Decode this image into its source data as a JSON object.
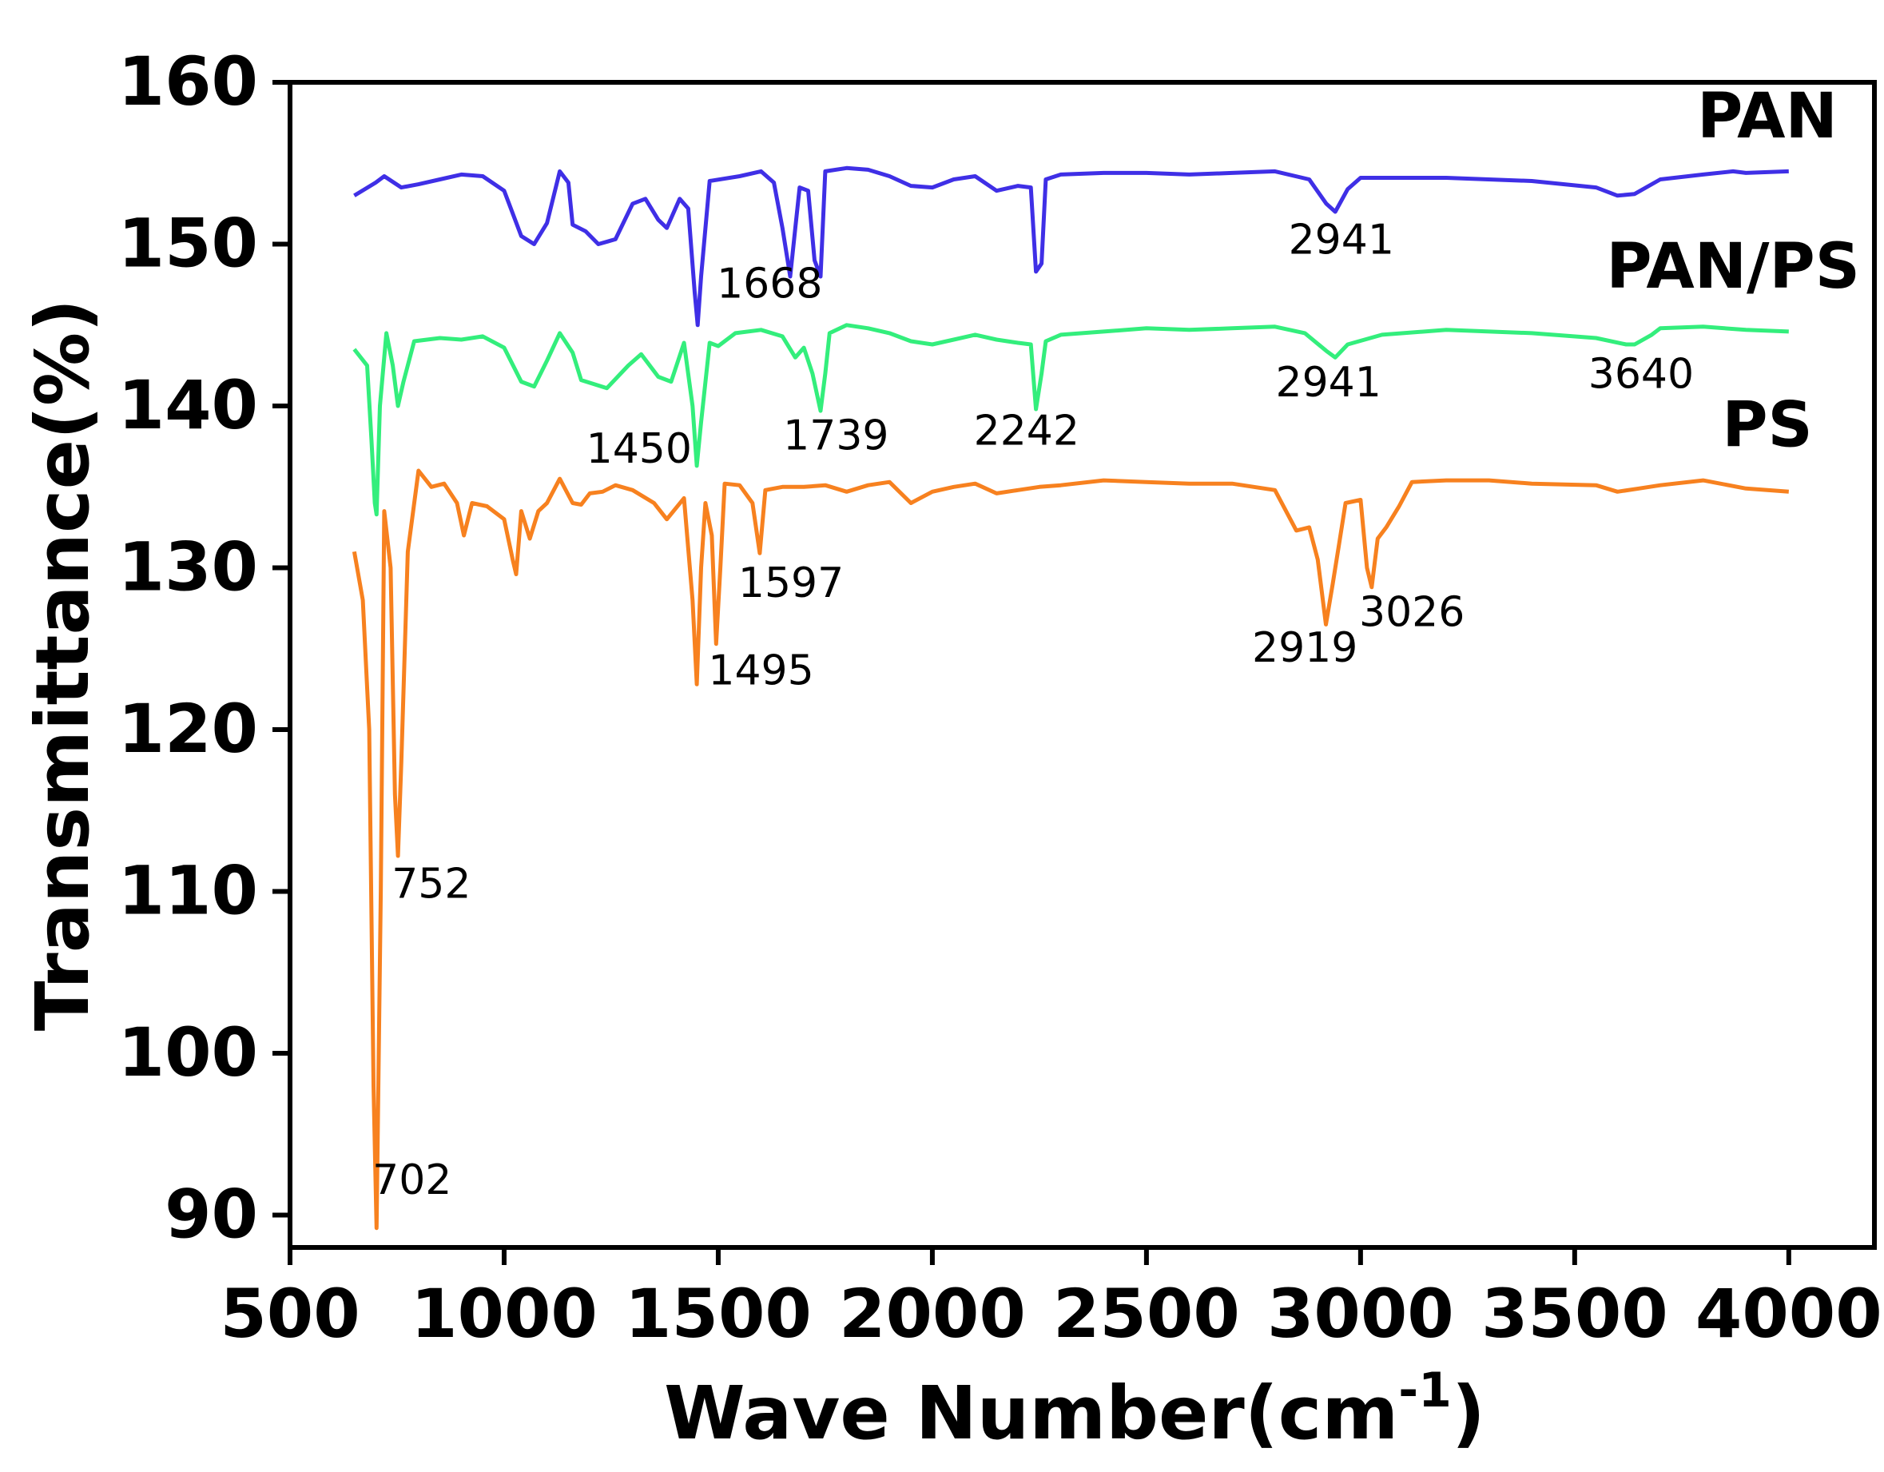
{
  "chart_data": {
    "type": "line",
    "title": "",
    "xlabel": "Wave Number(cm",
    "xlabel_superscript": "-1",
    "xlabel_close": ")",
    "ylabel": "Transmittance(%)",
    "xlim": [
      500,
      4200
    ],
    "ylim": [
      88,
      160
    ],
    "x_ticks": [
      500,
      1000,
      1500,
      2000,
      2500,
      3000,
      3500,
      4000
    ],
    "y_ticks": [
      90,
      100,
      110,
      120,
      130,
      140,
      150,
      160
    ],
    "x_tick_labels": [
      "500",
      "1000",
      "1500",
      "2000",
      "2500",
      "3000",
      "3500",
      "4000"
    ],
    "y_tick_labels": [
      "90",
      "100",
      "110",
      "120",
      "130",
      "140",
      "150",
      "160"
    ],
    "series": [
      {
        "name": "PAN",
        "color": "#3f2fe6",
        "points": [
          [
            650,
            153
          ],
          [
            700,
            153.8
          ],
          [
            720,
            154.2
          ],
          [
            760,
            153.5
          ],
          [
            800,
            153.7
          ],
          [
            850,
            154
          ],
          [
            900,
            154.3
          ],
          [
            950,
            154.2
          ],
          [
            1000,
            153.3
          ],
          [
            1040,
            150.5
          ],
          [
            1070,
            150
          ],
          [
            1100,
            151.3
          ],
          [
            1130,
            154.5
          ],
          [
            1150,
            153.8
          ],
          [
            1160,
            151.2
          ],
          [
            1190,
            150.8
          ],
          [
            1220,
            150
          ],
          [
            1260,
            150.3
          ],
          [
            1300,
            152.5
          ],
          [
            1330,
            152.8
          ],
          [
            1360,
            151.5
          ],
          [
            1380,
            151
          ],
          [
            1410,
            152.8
          ],
          [
            1430,
            152.2
          ],
          [
            1445,
            147
          ],
          [
            1452,
            145
          ],
          [
            1460,
            148
          ],
          [
            1480,
            153.9
          ],
          [
            1550,
            154.2
          ],
          [
            1600,
            154.5
          ],
          [
            1630,
            153.8
          ],
          [
            1650,
            151
          ],
          [
            1668,
            148
          ],
          [
            1680,
            151
          ],
          [
            1690,
            153.5
          ],
          [
            1710,
            153.3
          ],
          [
            1725,
            149
          ],
          [
            1739,
            148
          ],
          [
            1750,
            154.5
          ],
          [
            1800,
            154.7
          ],
          [
            1850,
            154.6
          ],
          [
            1900,
            154.2
          ],
          [
            1950,
            153.6
          ],
          [
            2000,
            153.5
          ],
          [
            2050,
            154
          ],
          [
            2100,
            154.2
          ],
          [
            2150,
            153.3
          ],
          [
            2200,
            153.6
          ],
          [
            2230,
            153.5
          ],
          [
            2242,
            148.3
          ],
          [
            2255,
            148.8
          ],
          [
            2265,
            154
          ],
          [
            2300,
            154.3
          ],
          [
            2400,
            154.4
          ],
          [
            2500,
            154.4
          ],
          [
            2600,
            154.3
          ],
          [
            2700,
            154.4
          ],
          [
            2800,
            154.5
          ],
          [
            2880,
            154
          ],
          [
            2920,
            152.5
          ],
          [
            2941,
            152
          ],
          [
            2970,
            153.4
          ],
          [
            3000,
            154.1
          ],
          [
            3200,
            154.1
          ],
          [
            3400,
            153.9
          ],
          [
            3550,
            153.5
          ],
          [
            3600,
            153
          ],
          [
            3640,
            153.1
          ],
          [
            3700,
            154
          ],
          [
            3800,
            154.3
          ],
          [
            3870,
            154.5
          ],
          [
            3900,
            154.4
          ],
          [
            4000,
            154.5
          ]
        ]
      },
      {
        "name": "PAN/PS",
        "color": "#33ee7c",
        "points": [
          [
            650,
            143.5
          ],
          [
            680,
            142.5
          ],
          [
            690,
            138
          ],
          [
            698,
            134
          ],
          [
            702,
            133.3
          ],
          [
            710,
            140
          ],
          [
            725,
            144.5
          ],
          [
            740,
            142.5
          ],
          [
            752,
            140
          ],
          [
            765,
            141.5
          ],
          [
            790,
            144
          ],
          [
            850,
            144.2
          ],
          [
            900,
            144.1
          ],
          [
            950,
            144.3
          ],
          [
            1000,
            143.6
          ],
          [
            1040,
            141.5
          ],
          [
            1070,
            141.2
          ],
          [
            1100,
            142.8
          ],
          [
            1130,
            144.5
          ],
          [
            1160,
            143.3
          ],
          [
            1180,
            141.6
          ],
          [
            1240,
            141.1
          ],
          [
            1290,
            142.5
          ],
          [
            1320,
            143.2
          ],
          [
            1360,
            141.8
          ],
          [
            1390,
            141.5
          ],
          [
            1420,
            143.9
          ],
          [
            1440,
            140
          ],
          [
            1450,
            136.3
          ],
          [
            1460,
            139
          ],
          [
            1480,
            143.9
          ],
          [
            1500,
            143.7
          ],
          [
            1540,
            144.5
          ],
          [
            1600,
            144.7
          ],
          [
            1650,
            144.3
          ],
          [
            1680,
            143
          ],
          [
            1700,
            143.6
          ],
          [
            1720,
            142
          ],
          [
            1739,
            139.7
          ],
          [
            1750,
            142
          ],
          [
            1760,
            144.5
          ],
          [
            1800,
            145
          ],
          [
            1850,
            144.8
          ],
          [
            1900,
            144.5
          ],
          [
            1950,
            144
          ],
          [
            2000,
            143.8
          ],
          [
            2050,
            144.1
          ],
          [
            2100,
            144.4
          ],
          [
            2150,
            144.1
          ],
          [
            2200,
            143.9
          ],
          [
            2230,
            143.8
          ],
          [
            2242,
            139.8
          ],
          [
            2255,
            142
          ],
          [
            2265,
            144
          ],
          [
            2300,
            144.4
          ],
          [
            2400,
            144.6
          ],
          [
            2500,
            144.8
          ],
          [
            2600,
            144.7
          ],
          [
            2700,
            144.8
          ],
          [
            2800,
            144.9
          ],
          [
            2870,
            144.5
          ],
          [
            2920,
            143.4
          ],
          [
            2941,
            143
          ],
          [
            2970,
            143.8
          ],
          [
            3050,
            144.4
          ],
          [
            3200,
            144.7
          ],
          [
            3400,
            144.5
          ],
          [
            3550,
            144.2
          ],
          [
            3620,
            143.8
          ],
          [
            3640,
            143.8
          ],
          [
            3680,
            144.4
          ],
          [
            3700,
            144.8
          ],
          [
            3800,
            144.9
          ],
          [
            3900,
            144.7
          ],
          [
            4000,
            144.6
          ]
        ]
      },
      {
        "name": "PS",
        "color": "#f7811f",
        "points": [
          [
            650,
            131
          ],
          [
            670,
            128
          ],
          [
            685,
            120
          ],
          [
            695,
            98
          ],
          [
            702,
            89.2
          ],
          [
            712,
            110
          ],
          [
            720,
            133.5
          ],
          [
            735,
            130
          ],
          [
            745,
            116
          ],
          [
            752,
            112.2
          ],
          [
            760,
            118
          ],
          [
            775,
            131
          ],
          [
            800,
            136
          ],
          [
            830,
            135
          ],
          [
            860,
            135.2
          ],
          [
            890,
            134
          ],
          [
            906,
            132
          ],
          [
            925,
            134
          ],
          [
            960,
            133.8
          ],
          [
            1000,
            133
          ],
          [
            1020,
            130.5
          ],
          [
            1028,
            129.6
          ],
          [
            1040,
            133.5
          ],
          [
            1060,
            131.8
          ],
          [
            1080,
            133.5
          ],
          [
            1100,
            134
          ],
          [
            1130,
            135.5
          ],
          [
            1160,
            134
          ],
          [
            1180,
            133.9
          ],
          [
            1200,
            134.6
          ],
          [
            1230,
            134.7
          ],
          [
            1260,
            135.1
          ],
          [
            1300,
            134.8
          ],
          [
            1350,
            134
          ],
          [
            1380,
            133
          ],
          [
            1420,
            134.3
          ],
          [
            1440,
            128
          ],
          [
            1450,
            122.8
          ],
          [
            1460,
            130
          ],
          [
            1470,
            134
          ],
          [
            1485,
            132
          ],
          [
            1495,
            125.3
          ],
          [
            1505,
            130
          ],
          [
            1515,
            135.2
          ],
          [
            1550,
            135.1
          ],
          [
            1580,
            134
          ],
          [
            1597,
            130.9
          ],
          [
            1610,
            134.8
          ],
          [
            1650,
            135
          ],
          [
            1700,
            135
          ],
          [
            1750,
            135.1
          ],
          [
            1800,
            134.7
          ],
          [
            1850,
            135.1
          ],
          [
            1900,
            135.3
          ],
          [
            1950,
            134
          ],
          [
            2000,
            134.7
          ],
          [
            2050,
            135
          ],
          [
            2100,
            135.2
          ],
          [
            2150,
            134.6
          ],
          [
            2200,
            134.8
          ],
          [
            2250,
            135
          ],
          [
            2300,
            135.1
          ],
          [
            2400,
            135.4
          ],
          [
            2500,
            135.3
          ],
          [
            2600,
            135.2
          ],
          [
            2700,
            135.2
          ],
          [
            2800,
            134.8
          ],
          [
            2850,
            132.3
          ],
          [
            2880,
            132.5
          ],
          [
            2900,
            130.5
          ],
          [
            2919,
            126.5
          ],
          [
            2935,
            129
          ],
          [
            2950,
            131.5
          ],
          [
            2965,
            134
          ],
          [
            3000,
            134.2
          ],
          [
            3015,
            130
          ],
          [
            3026,
            128.8
          ],
          [
            3040,
            131.8
          ],
          [
            3060,
            132.5
          ],
          [
            3090,
            133.8
          ],
          [
            3120,
            135.3
          ],
          [
            3200,
            135.4
          ],
          [
            3300,
            135.4
          ],
          [
            3400,
            135.2
          ],
          [
            3550,
            135.1
          ],
          [
            3600,
            134.7
          ],
          [
            3650,
            134.9
          ],
          [
            3700,
            135.1
          ],
          [
            3800,
            135.4
          ],
          [
            3900,
            134.9
          ],
          [
            4000,
            134.7
          ]
        ]
      }
    ],
    "series_labels": [
      {
        "text": "PAN",
        "x": 3950,
        "y": 156.6
      },
      {
        "text": "PAN/PS",
        "x": 3870,
        "y": 147.3
      },
      {
        "text": "PS",
        "x": 3950,
        "y": 137.5
      }
    ],
    "annotations": [
      {
        "text": "1668",
        "x": 1620,
        "y": 146.7
      },
      {
        "text": "2941",
        "x": 2955,
        "y": 149.4
      },
      {
        "text": "1450",
        "x": 1315,
        "y": 136.5
      },
      {
        "text": "1739",
        "x": 1775,
        "y": 137.3
      },
      {
        "text": "2242",
        "x": 2220,
        "y": 137.6
      },
      {
        "text": "2941",
        "x": 2925,
        "y": 140.6
      },
      {
        "text": "3640",
        "x": 3655,
        "y": 141.1
      },
      {
        "text": "1597",
        "x": 1670,
        "y": 128.2
      },
      {
        "text": "1495",
        "x": 1600,
        "y": 122.8
      },
      {
        "text": "2919",
        "x": 2870,
        "y": 124.2
      },
      {
        "text": "3026",
        "x": 3120,
        "y": 126.4
      },
      {
        "text": "752",
        "x": 830,
        "y": 109.6
      },
      {
        "text": "702",
        "x": 785,
        "y": 91.3
      }
    ]
  }
}
